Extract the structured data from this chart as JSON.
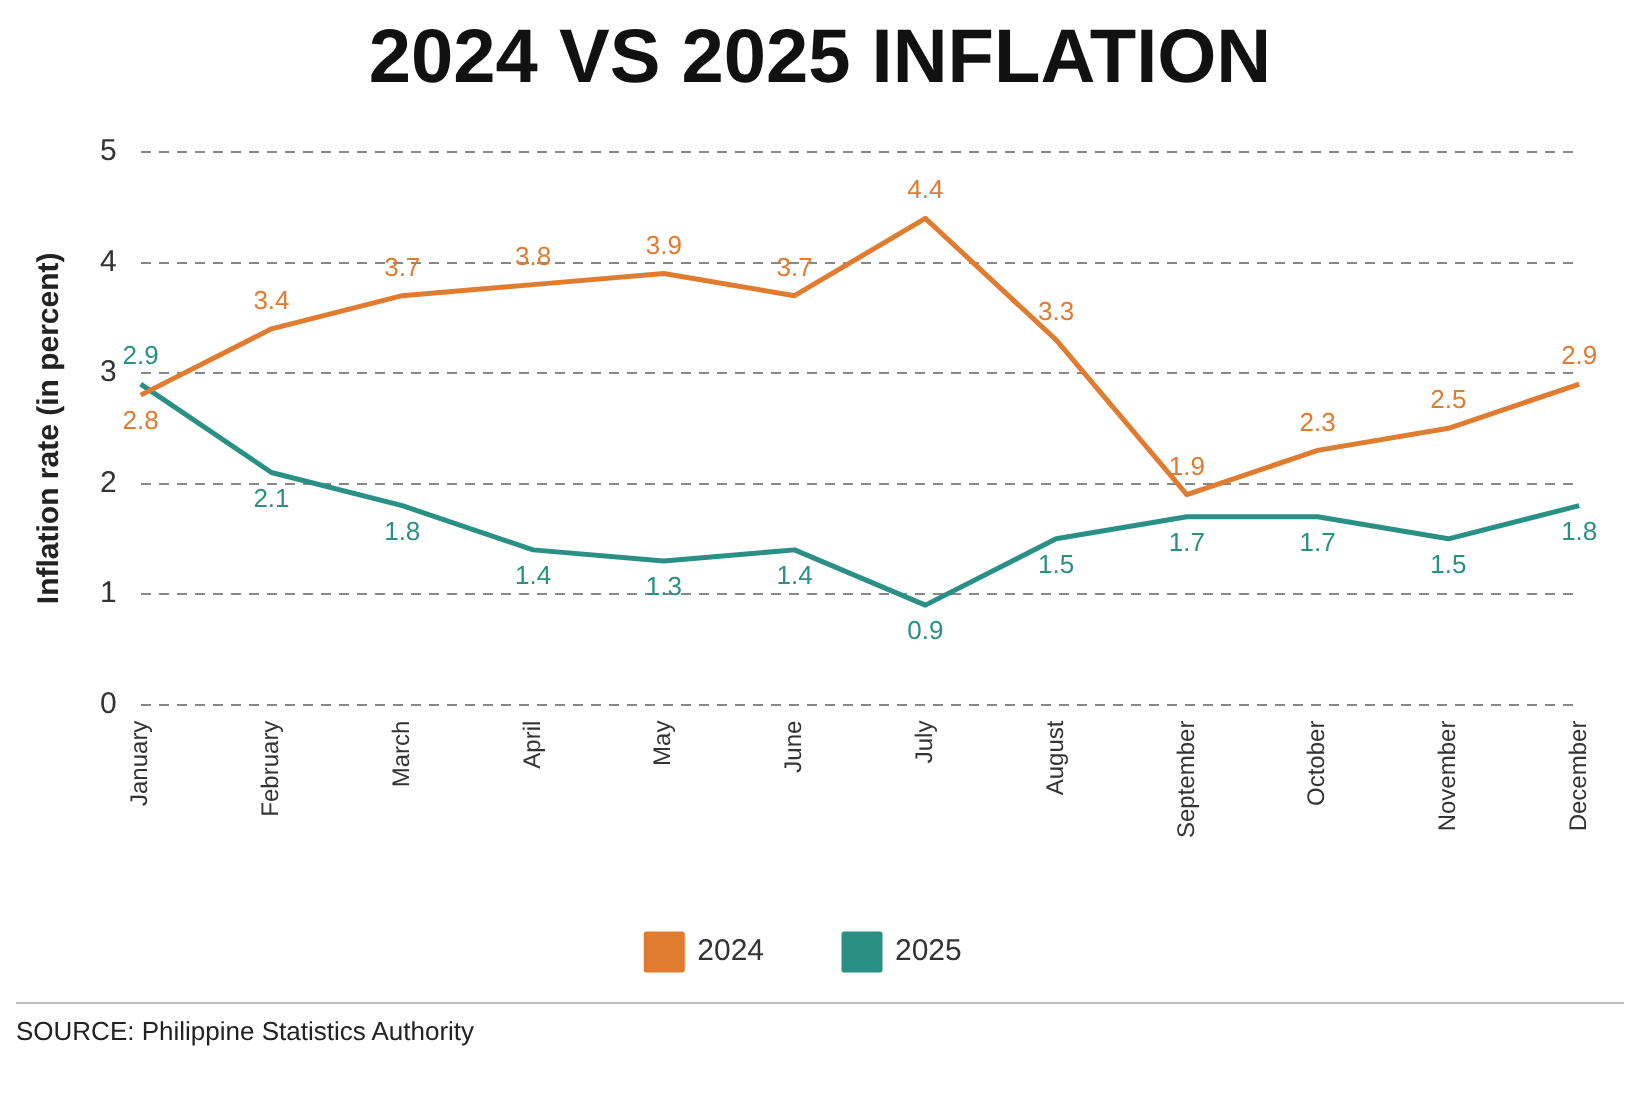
{
  "chart_data": {
    "type": "line",
    "title": "2024 VS 2025 INFLATION",
    "ylabel": "Inflation rate (in percent)",
    "categories": [
      "January",
      "February",
      "March",
      "April",
      "May",
      "June",
      "July",
      "August",
      "September",
      "October",
      "November",
      "December"
    ],
    "series": [
      {
        "name": "2024",
        "color": "#e07b2f",
        "values": [
          2.8,
          3.4,
          3.7,
          3.8,
          3.9,
          3.7,
          4.4,
          3.3,
          1.9,
          2.3,
          2.5,
          2.9
        ]
      },
      {
        "name": "2025",
        "color": "#2a9086",
        "values": [
          2.9,
          2.1,
          1.8,
          1.4,
          1.3,
          1.4,
          0.9,
          1.5,
          1.7,
          1.7,
          1.5,
          1.8
        ]
      }
    ],
    "ylim": [
      0,
      5
    ],
    "yticks": [
      0,
      1,
      2,
      3,
      4,
      5
    ],
    "grid": "y",
    "line_style": "solid",
    "marker": "none",
    "legend": "bottom",
    "data_labels": true,
    "annotations": [
      "SOURCE: Philippine Statistics Authority"
    ]
  }
}
